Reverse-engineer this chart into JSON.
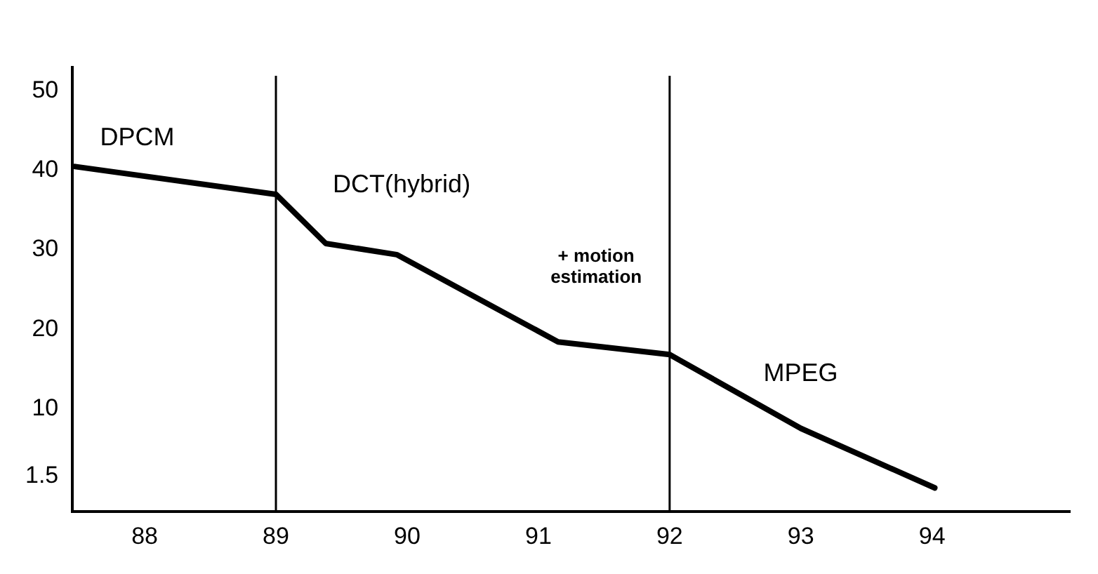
{
  "chart_data": {
    "type": "line",
    "series": [
      {
        "color": "#000000",
        "x": [
          87.47,
          89,
          89.38,
          89.92,
          91.15,
          92,
          93,
          94.02
        ],
        "values": [
          40.5,
          37,
          30.8,
          29.4,
          18.4,
          16.8,
          7.5,
          0
        ]
      }
    ],
    "xlim": [
      87.45,
      95.05
    ],
    "xticks": [
      88,
      89,
      90,
      91,
      92,
      93,
      94
    ],
    "ylim": [
      -3,
      53
    ],
    "yticks": [
      1.5,
      10,
      20,
      30,
      40,
      50
    ],
    "ref_lines": [
      {
        "axis": "x",
        "value": 89,
        "color": "#000000"
      },
      {
        "axis": "x",
        "value": 92,
        "color": "#000000"
      }
    ],
    "annotations": [
      "DPCM",
      "DCT(hybrid)",
      "+ motion\nestimation",
      "MPEG"
    ],
    "grid": false,
    "legend": false,
    "marker": "none",
    "line_style": "solid"
  }
}
